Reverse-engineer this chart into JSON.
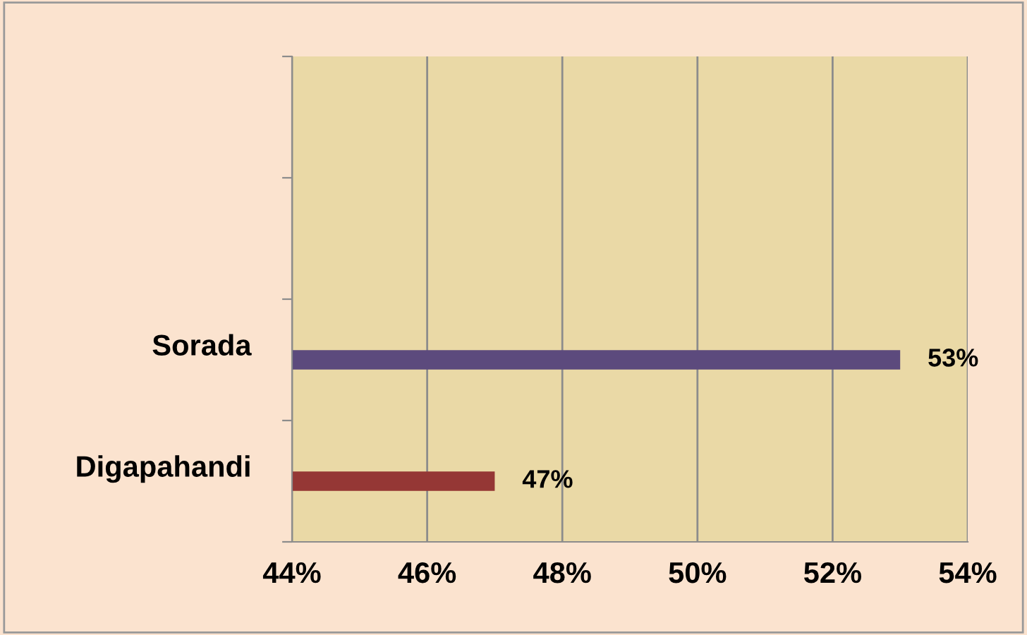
{
  "chart_data": {
    "type": "bar",
    "orientation": "horizontal",
    "categories": [
      null,
      null,
      "Sorada",
      "Digapahandi"
    ],
    "values": [
      null,
      null,
      53,
      47
    ],
    "colors": [
      null,
      null,
      "#5c4a7d",
      "#953735"
    ],
    "value_labels": [
      null,
      null,
      "53%",
      "47%"
    ],
    "xlim": [
      44,
      54
    ],
    "xticks": [
      {
        "value": 44,
        "label": "44%"
      },
      {
        "value": 46,
        "label": "46%"
      },
      {
        "value": 48,
        "label": "48%"
      },
      {
        "value": 50,
        "label": "50%"
      },
      {
        "value": 52,
        "label": "52%"
      },
      {
        "value": 54,
        "label": "54%"
      }
    ],
    "grid": "x",
    "legend": false
  }
}
